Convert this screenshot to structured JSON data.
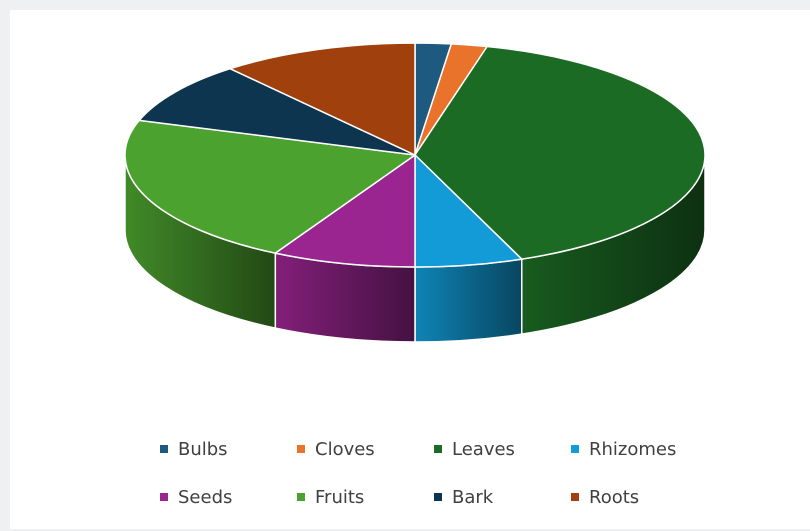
{
  "chart_data": {
    "type": "pie",
    "style": "3d",
    "categories": [
      "Bulbs",
      "Cloves",
      "Leaves",
      "Rhizomes",
      "Seeds",
      "Fruits",
      "Bark",
      "Roots"
    ],
    "values": [
      2,
      2,
      40,
      6,
      8,
      22,
      9,
      11
    ],
    "colors": [
      "#1e5a80",
      "#e9732a",
      "#1c6b25",
      "#129bd6",
      "#9a2590",
      "#4ca22f",
      "#0d3550",
      "#a0400d"
    ],
    "legend_position": "bottom"
  }
}
